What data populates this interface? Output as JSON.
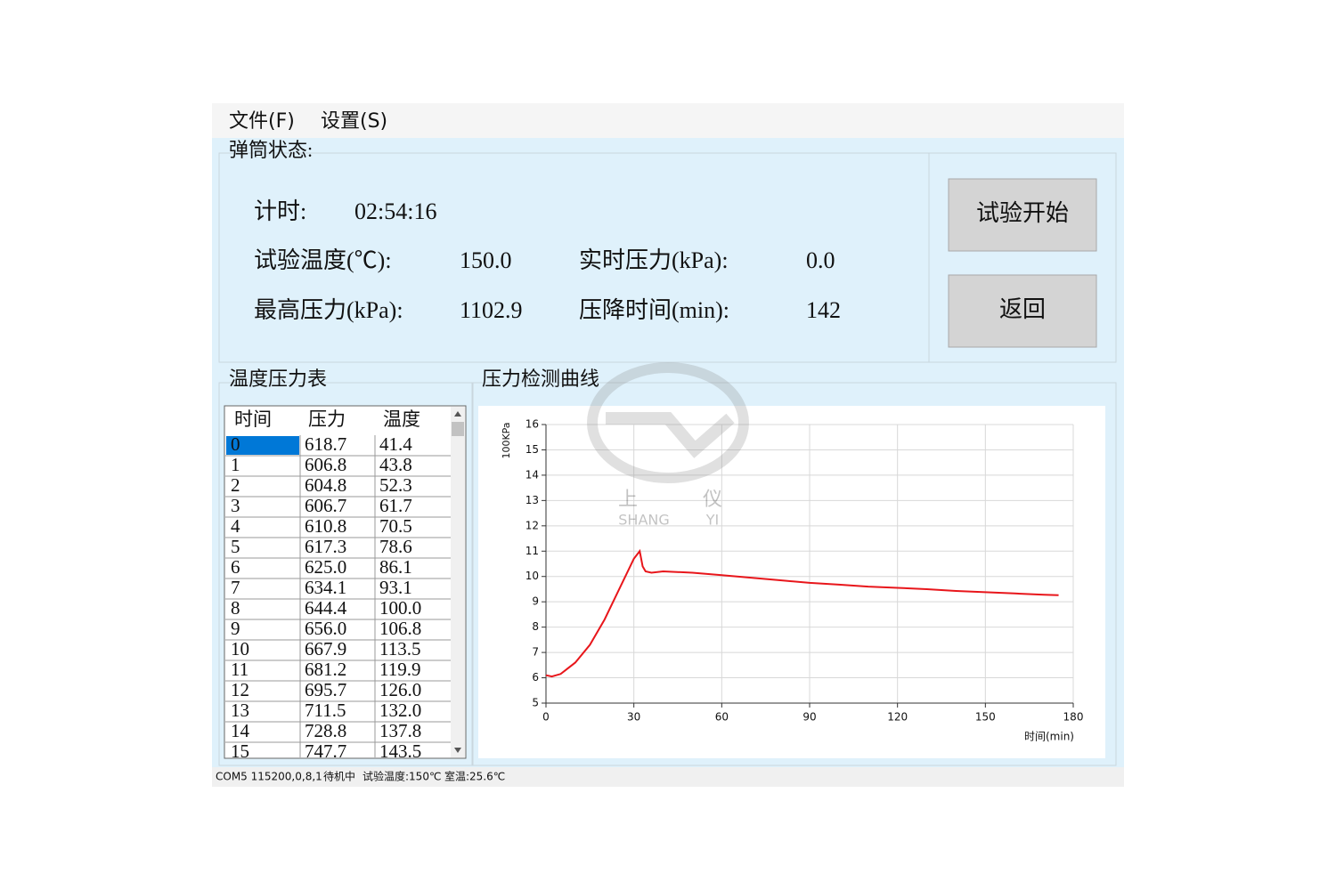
{
  "menu": [
    "文件(F)",
    "设置(S)"
  ],
  "status_group": {
    "title": "弹筒状态:",
    "timer_label": "计时:",
    "timer_value": "02:54:16",
    "fields": [
      {
        "label": "试验温度(℃):",
        "value": "150.0"
      },
      {
        "label": "实时压力(kPa):",
        "value": "0.0"
      },
      {
        "label": "最高压力(kPa):",
        "value": "1102.9"
      },
      {
        "label": "压降时间(min):",
        "value": "142"
      }
    ]
  },
  "buttons": [
    "试验开始",
    "返回"
  ],
  "table": {
    "title": "温度压力表",
    "header": [
      "时间",
      "压力",
      "温度"
    ],
    "rows": [
      [
        "0",
        "618.7",
        "41.4"
      ],
      [
        "1",
        "606.8",
        "43.8"
      ],
      [
        "2",
        "604.8",
        "52.3"
      ],
      [
        "3",
        "606.7",
        "61.7"
      ],
      [
        "4",
        "610.8",
        "70.5"
      ],
      [
        "5",
        "617.3",
        "78.6"
      ],
      [
        "6",
        "625.0",
        "86.1"
      ],
      [
        "7",
        "634.1",
        "93.1"
      ],
      [
        "8",
        "644.4",
        "100.0"
      ],
      [
        "9",
        "656.0",
        "106.8"
      ],
      [
        "10",
        "667.9",
        "113.5"
      ],
      [
        "11",
        "681.2",
        "119.9"
      ],
      [
        "12",
        "695.7",
        "126.0"
      ],
      [
        "13",
        "711.5",
        "132.0"
      ],
      [
        "14",
        "728.8",
        "137.8"
      ],
      [
        "15",
        "747.7",
        "143.5"
      ]
    ]
  },
  "chart_data": {
    "type": "line",
    "title": "压力检测曲线",
    "y_label": "100KPa",
    "x_label": "时间(min)",
    "x": [
      0,
      2,
      5,
      10,
      15,
      20,
      25,
      30,
      32,
      33,
      34,
      36,
      40,
      50,
      60,
      70,
      80,
      90,
      100,
      110,
      120,
      130,
      140,
      150,
      160,
      170,
      175
    ],
    "series": [
      {
        "color": "#e8161b",
        "values": [
          6.1,
          6.05,
          6.15,
          6.6,
          7.3,
          8.3,
          9.5,
          10.7,
          11.0,
          10.4,
          10.2,
          10.15,
          10.2,
          10.15,
          10.05,
          9.95,
          9.85,
          9.75,
          9.68,
          9.6,
          9.55,
          9.5,
          9.43,
          9.38,
          9.33,
          9.28,
          9.26
        ]
      }
    ],
    "xlim": [
      0,
      180
    ],
    "xticks": [
      0,
      30,
      60,
      90,
      120,
      150,
      180
    ],
    "ylim": [
      5,
      16
    ],
    "yticks": [
      5,
      6,
      7,
      8,
      9,
      10,
      11,
      12,
      13,
      14,
      15,
      16
    ],
    "grid": true
  },
  "watermark": {
    "cn": [
      "上",
      "仪"
    ],
    "en": [
      "SHANG",
      "YI"
    ]
  },
  "statusbar": [
    "COM5 115200,0,8,1",
    "待机中",
    "试验温度:150℃",
    "室温:25.6℃"
  ]
}
